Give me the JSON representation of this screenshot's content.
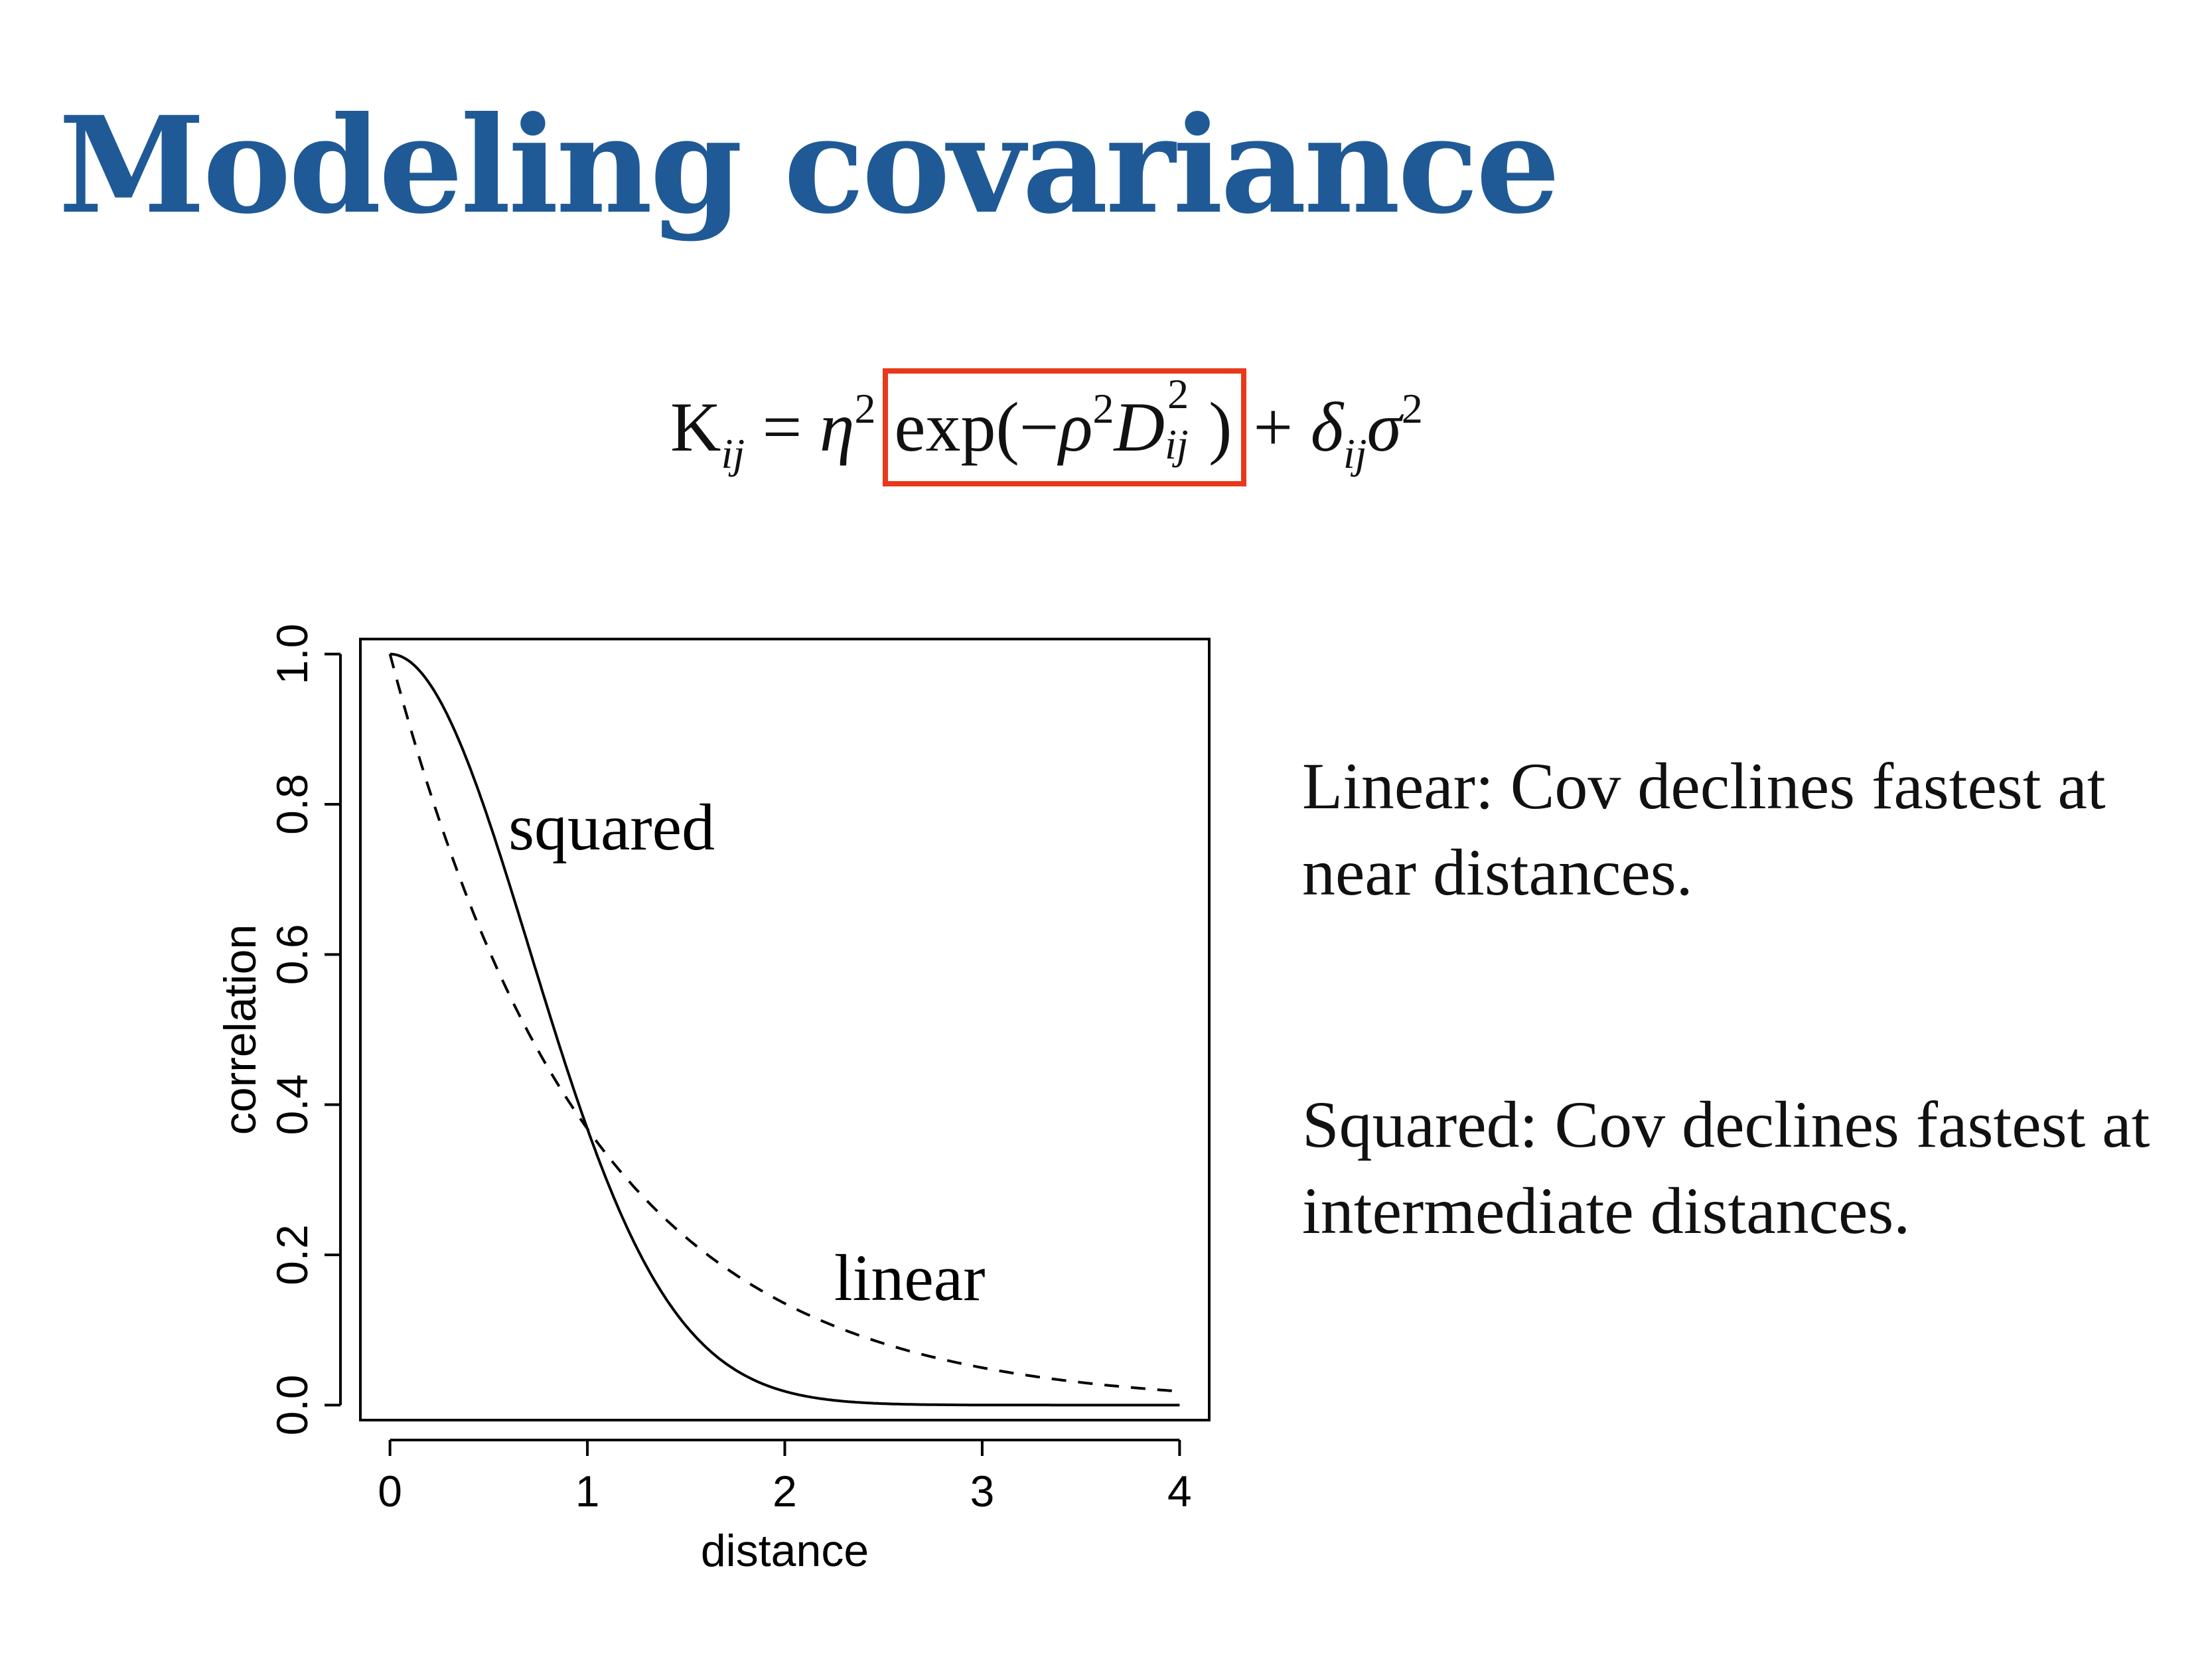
{
  "slide": {
    "title": "Modeling covariance",
    "formula": {
      "lhs_base": "K",
      "lhs_sub": "ij",
      "equals": "=",
      "eta": "η",
      "eta_sup": "2",
      "boxed_open": "exp(−",
      "rho": "ρ",
      "rho_sup": "2",
      "D": "D",
      "D_sup": "2",
      "D_sub": "ij",
      "boxed_close": ")",
      "plus": "+",
      "delta": "δ",
      "delta_sub": "ij",
      "sigma": "σ",
      "sigma_sup": "2",
      "highlight_color": "#e8391d"
    },
    "notes": [
      "Linear: Cov declines fastest at near distances.",
      "Squared: Cov declines fastest at intermediate distances."
    ]
  },
  "chart_data": {
    "type": "line",
    "xlabel": "distance",
    "ylabel": "correlation",
    "xlim": [
      -0.15,
      4.15
    ],
    "ylim": [
      -0.02,
      1.02
    ],
    "xticks": [
      "0",
      "1",
      "2",
      "3",
      "4"
    ],
    "yticks": [
      "0.0",
      "0.2",
      "0.4",
      "0.6",
      "0.8",
      "1.0"
    ],
    "grid": false,
    "series": [
      {
        "name": "squared",
        "style": "solid",
        "x": [
          0,
          0.2,
          0.4,
          0.6,
          0.8,
          1.0,
          1.2,
          1.4,
          1.6,
          1.8,
          2.0,
          2.2,
          2.4,
          2.6,
          2.8,
          3.0,
          3.5,
          4.0
        ],
        "y": [
          1.0,
          0.96,
          0.852,
          0.698,
          0.527,
          0.368,
          0.237,
          0.141,
          0.077,
          0.039,
          0.018,
          0.008,
          0.003,
          0.001,
          0.0,
          0.0,
          0.0,
          0.0
        ]
      },
      {
        "name": "linear",
        "style": "dashed",
        "x": [
          0,
          0.2,
          0.4,
          0.6,
          0.8,
          1.0,
          1.2,
          1.4,
          1.6,
          1.8,
          2.0,
          2.2,
          2.4,
          2.6,
          2.8,
          3.0,
          3.5,
          4.0
        ],
        "y": [
          1.0,
          0.819,
          0.67,
          0.549,
          0.449,
          0.368,
          0.301,
          0.247,
          0.202,
          0.165,
          0.135,
          0.111,
          0.091,
          0.074,
          0.061,
          0.05,
          0.03,
          0.018
        ]
      }
    ],
    "annotations": [
      {
        "text": "squared",
        "x": 0.6,
        "y": 0.74
      },
      {
        "text": "linear",
        "x": 2.25,
        "y": 0.14
      }
    ]
  }
}
